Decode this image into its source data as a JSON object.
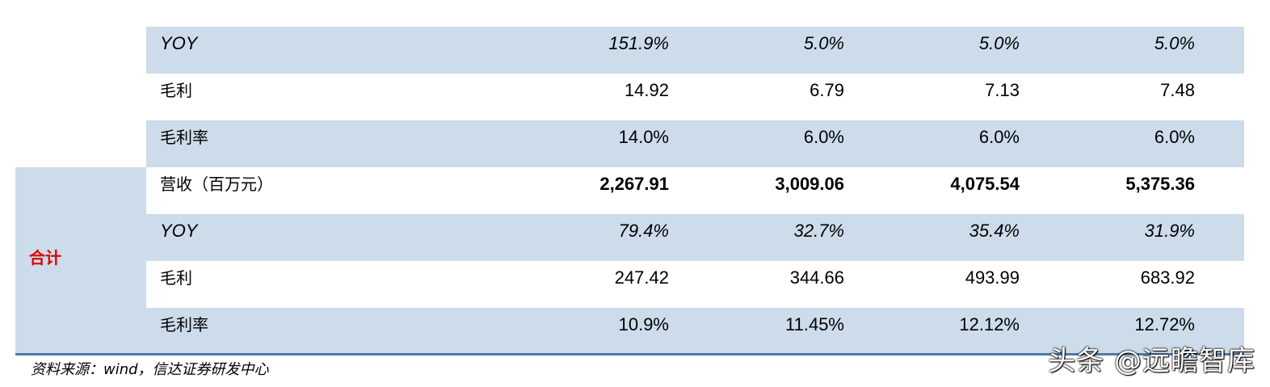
{
  "table": {
    "rows": [
      {
        "label": "YOY",
        "values": [
          "151.9%",
          "5.0%",
          "5.0%",
          "5.0%"
        ],
        "style": "italic",
        "bg": "shaded"
      },
      {
        "label": "毛利",
        "values": [
          "14.92",
          "6.79",
          "7.13",
          "7.48"
        ],
        "style": "normal",
        "bg": "white"
      },
      {
        "label": "毛利率",
        "values": [
          "14.0%",
          "6.0%",
          "6.0%",
          "6.0%"
        ],
        "style": "normal",
        "bg": "shaded"
      },
      {
        "label": "营收（百万元）",
        "values": [
          "2,267.91",
          "3,009.06",
          "4,075.54",
          "5,375.36"
        ],
        "style": "bold",
        "bg": "white"
      },
      {
        "label": "YOY",
        "values": [
          "79.4%",
          "32.7%",
          "35.4%",
          "31.9%"
        ],
        "style": "italic",
        "bg": "shaded"
      },
      {
        "label": "毛利",
        "values": [
          "247.42",
          "344.66",
          "493.99",
          "683.92"
        ],
        "style": "normal",
        "bg": "white"
      },
      {
        "label": "毛利率",
        "values": [
          "10.9%",
          "11.45%",
          "12.12%",
          "12.72%"
        ],
        "style": "normal",
        "bg": "shaded"
      }
    ],
    "group_label": "合计"
  },
  "source_note": "资料来源：wind，信达证券研发中心",
  "watermark": "头条 @远瞻智库",
  "colors": {
    "shaded_row": "#ccdcea",
    "group_label": "#e00000",
    "rule": "#4f79a8"
  }
}
